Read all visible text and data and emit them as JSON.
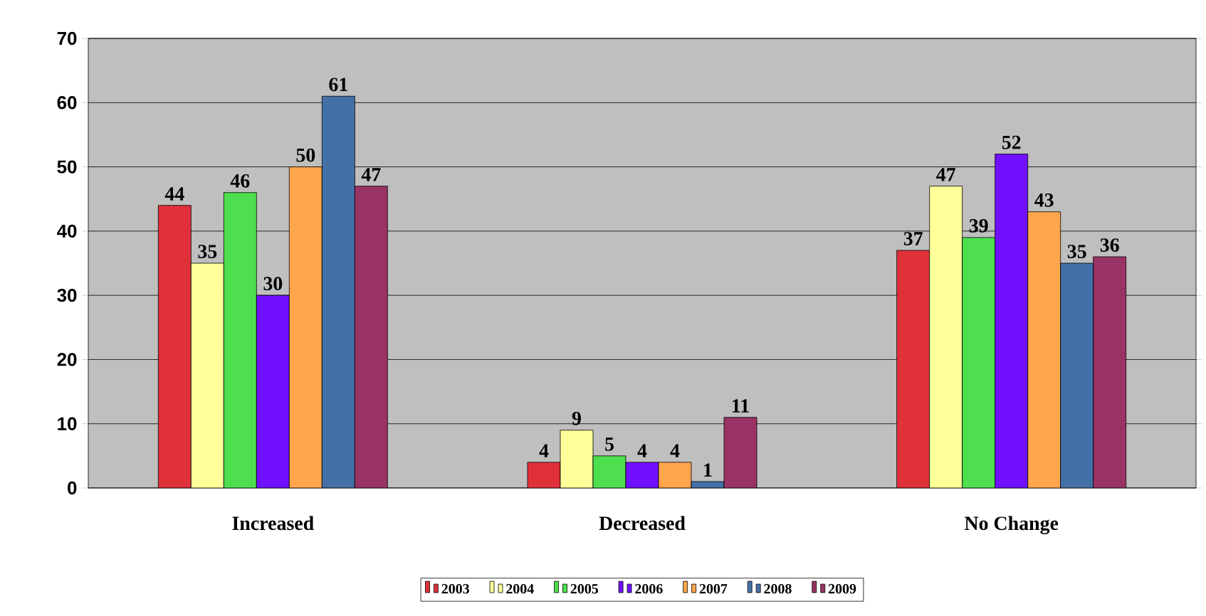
{
  "chart_data": {
    "type": "bar",
    "categories": [
      "Increased",
      "Decreased",
      "No Change"
    ],
    "series": [
      {
        "name": "2003",
        "color": "#e0303a",
        "values": [
          44,
          4,
          37
        ]
      },
      {
        "name": "2004",
        "color": "#ffff99",
        "values": [
          35,
          9,
          47
        ]
      },
      {
        "name": "2005",
        "color": "#4ddf4d",
        "values": [
          46,
          5,
          39
        ]
      },
      {
        "name": "2006",
        "color": "#7010ff",
        "values": [
          30,
          4,
          52
        ]
      },
      {
        "name": "2007",
        "color": "#ffa64d",
        "values": [
          50,
          4,
          43
        ]
      },
      {
        "name": "2008",
        "color": "#4470a8",
        "values": [
          61,
          1,
          35
        ]
      },
      {
        "name": "2009",
        "color": "#993366",
        "values": [
          47,
          11,
          36
        ]
      }
    ],
    "ylim": [
      0,
      70
    ],
    "yticks": [
      0,
      10,
      20,
      30,
      40,
      50,
      60,
      70
    ],
    "grid": "y",
    "legend": "bottom",
    "data_labels": true
  }
}
